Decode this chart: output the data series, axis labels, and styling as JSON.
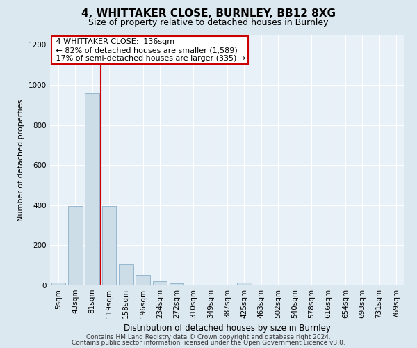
{
  "title_line1": "4, WHITTAKER CLOSE, BURNLEY, BB12 8XG",
  "title_line2": "Size of property relative to detached houses in Burnley",
  "xlabel": "Distribution of detached houses by size in Burnley",
  "ylabel": "Number of detached properties",
  "footer_line1": "Contains HM Land Registry data © Crown copyright and database right 2024.",
  "footer_line2": "Contains public sector information licensed under the Open Government Licence v3.0.",
  "bar_labels": [
    "5sqm",
    "43sqm",
    "81sqm",
    "119sqm",
    "158sqm",
    "196sqm",
    "234sqm",
    "272sqm",
    "310sqm",
    "349sqm",
    "387sqm",
    "425sqm",
    "463sqm",
    "502sqm",
    "540sqm",
    "578sqm",
    "616sqm",
    "654sqm",
    "693sqm",
    "731sqm",
    "769sqm"
  ],
  "bar_values": [
    15,
    395,
    960,
    395,
    105,
    52,
    22,
    10,
    2,
    2,
    2,
    15,
    2,
    0,
    0,
    0,
    0,
    0,
    0,
    0,
    0
  ],
  "bar_color": "#ccdde8",
  "bar_edgecolor": "#8ab0cc",
  "ylim": [
    0,
    1250
  ],
  "yticks": [
    0,
    200,
    400,
    600,
    800,
    1000,
    1200
  ],
  "vline_x_index": 2.5,
  "annotation_text": " 4 WHITTAKER CLOSE:  136sqm\n ← 82% of detached houses are smaller (1,589)\n 17% of semi-detached houses are larger (335) →",
  "annotation_box_color": "#ffffff",
  "annotation_box_edgecolor": "#cc0000",
  "vline_color": "#cc0000",
  "bg_color": "#dce8f0",
  "plot_bg_color": "#e8f0f8",
  "grid_color": "#ffffff",
  "title_fontsize": 11,
  "subtitle_fontsize": 9,
  "annotation_fontsize": 8,
  "ylabel_fontsize": 8,
  "xlabel_fontsize": 8.5,
  "tick_fontsize": 7.5,
  "footer_fontsize": 6.5
}
